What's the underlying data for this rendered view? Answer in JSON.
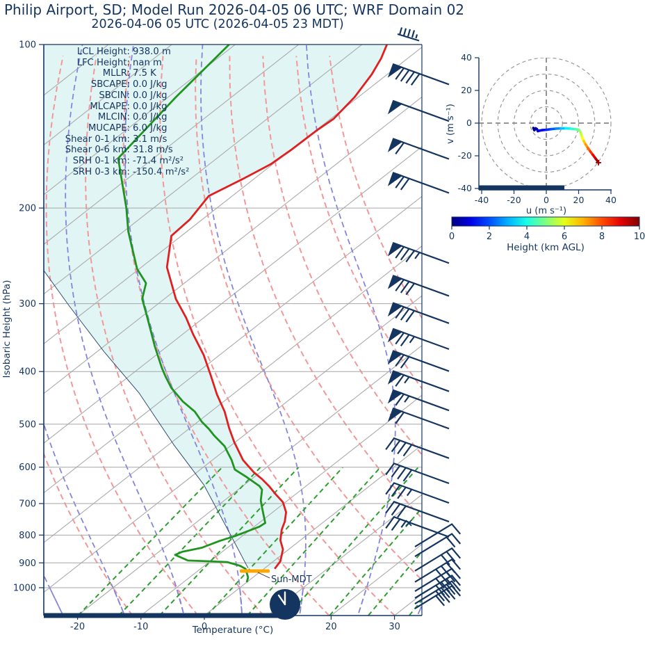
{
  "title": "Philip Airport, SD; Model Run 2026-04-05 06 UTC; WRF Domain 02",
  "subtitle": "2026-04-06 05 UTC  (2026-04-05 23 MDT)",
  "colors": {
    "navy": "#14355f",
    "temperature": "#e02020",
    "dewpoint": "#1f941f",
    "parcel": "#2f4f6f",
    "cin_shade": "#e1f5f5",
    "isotherm": "#b0b0b0",
    "pressure_grid": "#a6a6a6",
    "dry_adiabat": "#f29898",
    "moist_adiabat": "#8585dd",
    "mixing_ratio": "#2e9e2e",
    "sun_marker": "#ffa500",
    "trace_end_marker": "#a00000",
    "clock_hands": "#ffffff"
  },
  "stats": [
    {
      "label": "LCL Height",
      "value": "938.0 m"
    },
    {
      "label": "LFC Height",
      "value": "nan m"
    },
    {
      "label": "MLLR",
      "value": "7.5 K"
    },
    {
      "label": "SBCAPE",
      "value": "0.0 J/kg"
    },
    {
      "label": "SBCIN",
      "value": "0.0 J/kg"
    },
    {
      "label": "MLCAPE",
      "value": "0.0 J/kg"
    },
    {
      "label": "MLCIN",
      "value": "0.0 J/kg"
    },
    {
      "label": "MUCAPE",
      "value": "6.0 J/kg"
    },
    {
      "label": "Shear 0-1 km",
      "value": "3.1 m/s"
    },
    {
      "label": "Shear 0-6 km",
      "value": "31.8 m/s"
    },
    {
      "label": "SRH 0-1 km",
      "value": "-71.4 m²/s²"
    },
    {
      "label": "SRH 0-3 km",
      "value": "-150.4 m²/s²"
    }
  ],
  "chart_data": {
    "type": "skewt-logp-sounding",
    "skewt": {
      "ylabel": "Isobaric Height (hPa)",
      "xlabel": "Temperature (°C)",
      "p_ticks": [
        100,
        200,
        300,
        400,
        500,
        600,
        700,
        800,
        900,
        1000
      ],
      "p_top": 100,
      "p_bottom": 1125,
      "t_ticks": [
        -20,
        -10,
        0,
        20,
        30
      ],
      "sun_annotation": "Sun-MDT",
      "note_profiles": "pairs are [pressure_hPa, temperature_read_on_bottom_axis_C]",
      "temperature_profile": [
        [
          100,
          28.8
        ],
        [
          106,
          27.9
        ],
        [
          113.5,
          26.4
        ],
        [
          125,
          23.7
        ],
        [
          137,
          20.4
        ],
        [
          144,
          17.7
        ],
        [
          156,
          13.8
        ],
        [
          166,
          10.5
        ],
        [
          176,
          6.4
        ],
        [
          190,
          0.7
        ],
        [
          210,
          -2.3
        ],
        [
          225,
          -5.2
        ],
        [
          257,
          -5.9
        ],
        [
          294,
          -4.5
        ],
        [
          318,
          -2.9
        ],
        [
          341,
          -1.8
        ],
        [
          373,
          -0.1
        ],
        [
          406,
          1.0
        ],
        [
          441,
          2.0
        ],
        [
          474,
          3.2
        ],
        [
          508,
          3.9
        ],
        [
          539,
          4.7
        ],
        [
          582,
          6.1
        ],
        [
          613,
          7.8
        ],
        [
          631,
          9.1
        ],
        [
          650,
          10.2
        ],
        [
          674,
          11.3
        ],
        [
          696,
          12.4
        ],
        [
          726,
          12.9
        ],
        [
          755,
          12.7
        ],
        [
          782,
          12.2
        ],
        [
          818,
          12.0
        ],
        [
          850,
          12.4
        ],
        [
          894,
          12.0
        ],
        [
          923,
          11.1
        ]
      ],
      "dewpoint_profile": [
        [
          100,
          3.9
        ],
        [
          125,
          -4.5
        ],
        [
          162,
          -13.6
        ],
        [
          200,
          -12.3
        ],
        [
          221,
          -12.0
        ],
        [
          259,
          -10.6
        ],
        [
          275,
          -9.2
        ],
        [
          294,
          -9.8
        ],
        [
          318,
          -9.0
        ],
        [
          360,
          -7.8
        ],
        [
          394,
          -6.7
        ],
        [
          409,
          -6.1
        ],
        [
          429,
          -5.2
        ],
        [
          454,
          -3.4
        ],
        [
          474,
          -1.5
        ],
        [
          495,
          -0.4
        ],
        [
          510,
          0.7
        ],
        [
          524,
          1.5
        ],
        [
          549,
          3.2
        ],
        [
          564,
          3.7
        ],
        [
          582,
          4.3
        ],
        [
          606,
          4.8
        ],
        [
          626,
          6.7
        ],
        [
          650,
          8.7
        ],
        [
          660,
          9.1
        ],
        [
          691,
          8.9
        ],
        [
          712,
          9.1
        ],
        [
          760,
          9.6
        ],
        [
          772,
          8.7
        ],
        [
          802,
          5.0
        ],
        [
          821,
          2.3
        ],
        [
          844,
          -0.4
        ],
        [
          859,
          -3.5
        ],
        [
          870,
          -4.6
        ],
        [
          891,
          -2.6
        ],
        [
          894,
          0.7
        ],
        [
          897,
          3.6
        ],
        [
          911,
          5.6
        ],
        [
          923,
          6.5
        ],
        [
          957,
          6.9
        ],
        [
          977,
          6.7
        ]
      ],
      "parcel_profile": [
        [
          261,
          -25.3
        ],
        [
          303,
          -21.3
        ],
        [
          368,
          -15.8
        ],
        [
          438,
          -10.3
        ],
        [
          546,
          -4.8
        ],
        [
          646,
          -0.1
        ],
        [
          790,
          3.9
        ],
        [
          920,
          6.9
        ]
      ],
      "dry_adiabats_thetaC": [
        -20,
        -10,
        0,
        10,
        20,
        30,
        40,
        50,
        60,
        70
      ],
      "moist_adiabats_t1000C": [
        -40,
        -30,
        -20,
        -10,
        0,
        10,
        20,
        30
      ],
      "mixing_ratio_g_kg": [
        0.7,
        1.2,
        2,
        3.5,
        5.5,
        8.5,
        13,
        19,
        28
      ],
      "wind_barbs": [
        {
          "p": 113,
          "pen": 1,
          "full": 4,
          "half": 0,
          "dir": "nw"
        },
        {
          "p": 132,
          "pen": 1,
          "full": 0,
          "half": 0,
          "dir": "nw"
        },
        {
          "p": 155,
          "pen": 1,
          "full": 1,
          "half": 0,
          "dir": "nw"
        },
        {
          "p": 179,
          "pen": 1,
          "full": 2,
          "half": 0,
          "dir": "nw"
        },
        {
          "p": 241,
          "pen": 1,
          "full": 3,
          "half": 1,
          "dir": "nw"
        },
        {
          "p": 277,
          "pen": 1,
          "full": 3,
          "half": 0,
          "dir": "nw"
        },
        {
          "p": 311,
          "pen": 1,
          "full": 3,
          "half": 0,
          "dir": "nw"
        },
        {
          "p": 347,
          "pen": 1,
          "full": 2,
          "half": 1,
          "dir": "nw"
        },
        {
          "p": 381,
          "pen": 1,
          "full": 2,
          "half": 0,
          "dir": "nw"
        },
        {
          "p": 415,
          "pen": 1,
          "full": 1,
          "half": 1,
          "dir": "nw"
        },
        {
          "p": 450,
          "pen": 1,
          "full": 1,
          "half": 1,
          "dir": "nw"
        },
        {
          "p": 486,
          "pen": 1,
          "full": 1,
          "half": 0,
          "dir": "nw"
        },
        {
          "p": 551,
          "pen": 0,
          "full": 4,
          "half": 0,
          "dir": "nw"
        },
        {
          "p": 613,
          "pen": 0,
          "full": 4,
          "half": 0,
          "dir": "nw"
        },
        {
          "p": 666,
          "pen": 0,
          "full": 3,
          "half": 1,
          "dir": "nw"
        },
        {
          "p": 721,
          "pen": 0,
          "full": 3,
          "half": 0,
          "dir": "nw"
        },
        {
          "p": 769,
          "pen": 0,
          "full": 2,
          "half": 1,
          "dir": "nw"
        },
        {
          "p": 804,
          "pen": 0,
          "full": 1,
          "half": 0,
          "dir": "ese"
        },
        {
          "p": 838,
          "pen": 0,
          "full": 2,
          "half": 0,
          "dir": "ese"
        },
        {
          "p": 891,
          "pen": 0,
          "full": 3,
          "half": 0,
          "dir": "ese"
        },
        {
          "p": 934,
          "pen": 0,
          "full": 3,
          "half": 1,
          "dir": "ese"
        },
        {
          "p": 971,
          "pen": 0,
          "full": 4,
          "half": 0,
          "dir": "ese"
        },
        {
          "p": 1000,
          "pen": 0,
          "full": 4,
          "half": 0,
          "dir": "ese"
        },
        {
          "p": 1024,
          "pen": 0,
          "full": 4,
          "half": 0,
          "dir": "ese"
        },
        {
          "p": 1045,
          "pen": 0,
          "full": 4,
          "half": 0,
          "dir": "ese"
        }
      ]
    },
    "hodograph": {
      "xlabel": "u (m s⁻¹)",
      "ylabel": "v (m s⁻¹)",
      "x_ticks": [
        -40,
        -20,
        0,
        20,
        40
      ],
      "y_ticks": [
        -40,
        -20,
        0,
        20,
        40
      ],
      "range_rings": [
        10,
        20,
        30,
        40
      ],
      "trace_u_v_heightkm": [
        [
          -8,
          -3,
          0
        ],
        [
          -7.4,
          -4.3,
          0.15
        ],
        [
          -6.6,
          -3.2,
          0.3
        ],
        [
          -5.8,
          -3.7,
          0.45
        ],
        [
          -5.2,
          -4.9,
          0.6
        ],
        [
          -4.2,
          -4.6,
          0.8
        ],
        [
          -2.5,
          -4.3,
          1.1
        ],
        [
          0,
          -4.1,
          1.5
        ],
        [
          3,
          -3.7,
          1.9
        ],
        [
          6,
          -3.4,
          2.4
        ],
        [
          9,
          -3.2,
          2.9
        ],
        [
          12,
          -3.2,
          3.4
        ],
        [
          15,
          -3.4,
          3.9
        ],
        [
          18,
          -3.7,
          4.4
        ],
        [
          20,
          -4.1,
          4.8
        ],
        [
          21,
          -5.3,
          5.2
        ],
        [
          21.6,
          -7,
          5.6
        ],
        [
          22.2,
          -9,
          6.0
        ],
        [
          23.2,
          -11,
          6.5
        ],
        [
          24.3,
          -13,
          7.0
        ],
        [
          25.7,
          -15.2,
          7.5
        ],
        [
          27.2,
          -17.3,
          8.0
        ],
        [
          28.8,
          -19.4,
          8.6
        ],
        [
          30.3,
          -21.4,
          9.2
        ],
        [
          31.5,
          -23,
          9.6
        ],
        [
          32.3,
          -24.2,
          10
        ]
      ]
    },
    "colorbar": {
      "label": "Height (km AGL)",
      "ticks": [
        0,
        2,
        4,
        6,
        8,
        10
      ],
      "min": 0,
      "max": 10,
      "colormap": "jet"
    }
  }
}
